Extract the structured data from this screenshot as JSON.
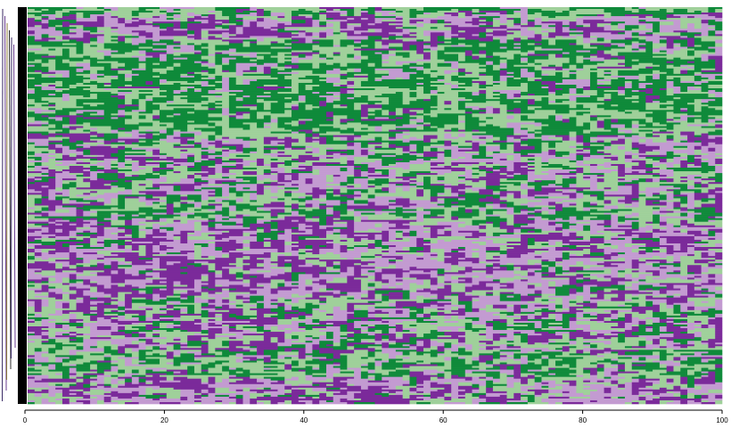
{
  "chart_data": {
    "type": "heatmap",
    "title": "",
    "xlabel": "",
    "ylabel": "",
    "xlim": [
      0,
      100
    ],
    "x_ticks": [
      {
        "value": 0,
        "label": "0"
      },
      {
        "value": 20,
        "label": "20"
      },
      {
        "value": 40,
        "label": "40"
      },
      {
        "value": 60,
        "label": "60"
      },
      {
        "value": 80,
        "label": "80"
      },
      {
        "value": 100,
        "label": "100"
      }
    ],
    "n_columns": 100,
    "n_rows": 220,
    "grid": false,
    "legend": "none",
    "colors": {
      "dark_purple": "#7b2a9a",
      "light_purple": "#c39bd1",
      "light_green": "#9fd09a",
      "dark_green": "#0f8a3a",
      "left_bar": "#000000"
    },
    "bands": [
      {
        "row_start": 0,
        "row_end": 4,
        "pattern": "green-top"
      },
      {
        "row_start": 4,
        "row_end": 18,
        "pattern": "purple-band"
      },
      {
        "row_start": 18,
        "row_end": 70,
        "pattern": "dark-green-band"
      },
      {
        "row_start": 70,
        "row_end": 110,
        "pattern": "mixed"
      },
      {
        "row_start": 110,
        "row_end": 118,
        "pattern": "green-stripe"
      },
      {
        "row_start": 118,
        "row_end": 160,
        "pattern": "purple-band"
      },
      {
        "row_start": 160,
        "row_end": 190,
        "pattern": "mixed"
      },
      {
        "row_start": 190,
        "row_end": 205,
        "pattern": "green-stripe"
      },
      {
        "row_start": 205,
        "row_end": 220,
        "pattern": "purple-band"
      }
    ]
  }
}
